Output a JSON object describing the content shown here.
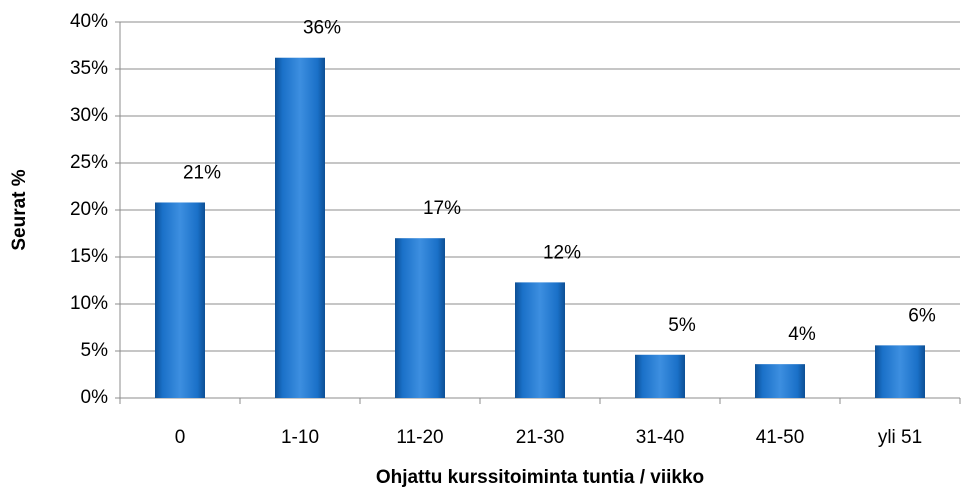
{
  "chart_data": {
    "type": "bar",
    "x_label": "Ohjattu kurssitoiminta tuntia / viikko",
    "y_label": "Seurat %",
    "categories": [
      "0",
      "1-10",
      "11-20",
      "21-30",
      "31-40",
      "41-50",
      "yli 51"
    ],
    "values": [
      20.8,
      36.2,
      17,
      12.3,
      4.6,
      3.6,
      5.6
    ],
    "value_labels": [
      "21%",
      "36%",
      "17%",
      "12%",
      "5%",
      "4%",
      "6%"
    ],
    "color": "#1a70c8",
    "ylim": [
      0,
      40
    ],
    "yticks": [
      {
        "value": 0,
        "label": "0%"
      },
      {
        "value": 5,
        "label": "5%"
      },
      {
        "value": 10,
        "label": "10%"
      },
      {
        "value": 15,
        "label": "15%"
      },
      {
        "value": 20,
        "label": "20%"
      },
      {
        "value": 25,
        "label": "25%"
      },
      {
        "value": 30,
        "label": "30%"
      },
      {
        "value": 35,
        "label": "35%"
      },
      {
        "value": 40,
        "label": "40%"
      }
    ],
    "grid": true
  }
}
